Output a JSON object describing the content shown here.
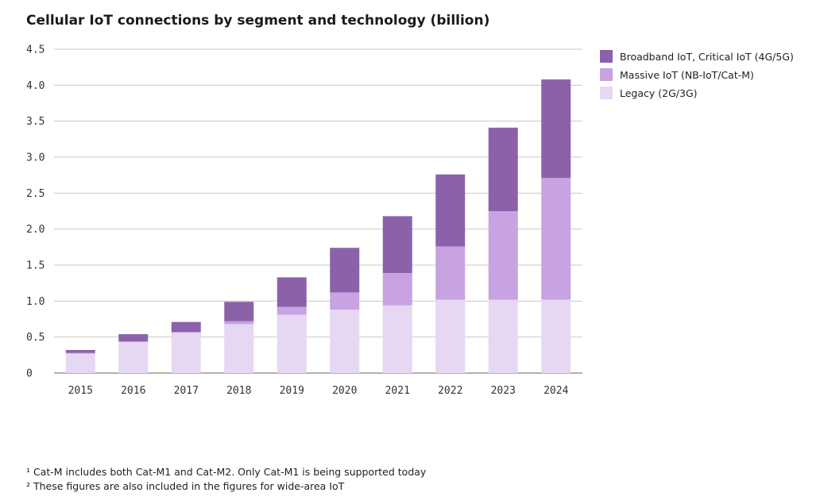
{
  "title": "Cellular IoT connections by segment and technology (billion)",
  "colors": {
    "broadband": "#8b62a9",
    "massive": "#c7a3e2",
    "legacy": "#e6d7f2",
    "grid": "#c8c8c8",
    "axis": "#999999"
  },
  "chart_data": {
    "type": "bar",
    "stacked": true,
    "title": "Cellular IoT connections by segment and technology (billion)",
    "categories": [
      "2015",
      "2016",
      "2017",
      "2018",
      "2019",
      "2020",
      "2021",
      "2022",
      "2023",
      "2024"
    ],
    "series": [
      {
        "name": "Legacy (2G/3G)",
        "values": [
          0.27,
          0.43,
          0.56,
          0.68,
          0.81,
          0.88,
          0.94,
          1.02,
          1.02,
          1.02
        ]
      },
      {
        "name": "Massive IoT (NB-IoT/Cat-M)",
        "values": [
          0.01,
          0.01,
          0.01,
          0.04,
          0.11,
          0.24,
          0.45,
          0.74,
          1.23,
          1.69
        ]
      },
      {
        "name": "Broadband IoT, Critical IoT (4G/5G)",
        "values": [
          0.04,
          0.1,
          0.14,
          0.27,
          0.41,
          0.62,
          0.79,
          1.0,
          1.16,
          1.37
        ]
      }
    ],
    "yticks": [
      "0",
      "0.5",
      "1.0",
      "1.5",
      "2.0",
      "2.5",
      "3.0",
      "3.5",
      "4.0",
      "4.5"
    ],
    "ylim": [
      0,
      4.5
    ],
    "xlabel": "",
    "ylabel": "",
    "grid": true,
    "legend_position": "top-right"
  },
  "legend": [
    {
      "label": "Broadband IoT, Critical IoT (4G/5G)",
      "color": "#8b62a9"
    },
    {
      "label": "Massive IoT (NB-IoT/Cat-M)",
      "color": "#c7a3e2"
    },
    {
      "label": "Legacy (2G/3G)",
      "color": "#e6d7f2"
    }
  ],
  "footnotes": [
    "¹ Cat-M includes both Cat-M1 and Cat-M2. Only Cat-M1 is being supported today",
    "² These figures are also included in the figures for wide-area IoT"
  ]
}
